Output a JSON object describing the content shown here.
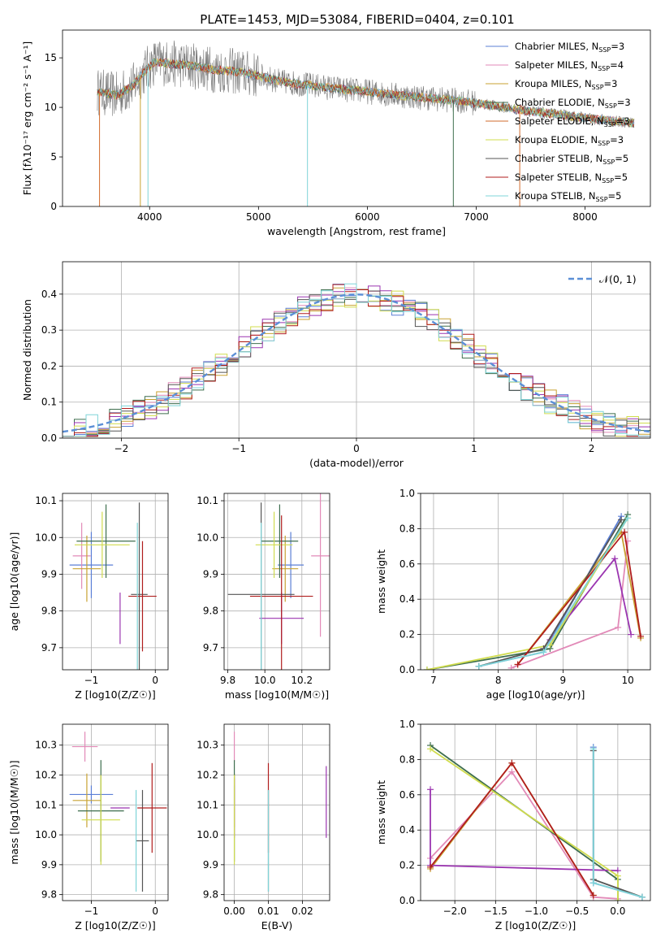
{
  "figure_title": "PLATE=1453, MJD=53084, FIBERID=0404, z=0.101",
  "series_colors": [
    "#5b7fd6",
    "#e28ab8",
    "#c8a232",
    "#3e6e4e",
    "#d26b2c",
    "#d0dc4e",
    "#555555",
    "#b01d1d",
    "#7fd4d8"
  ],
  "chart_data": [
    {
      "type": "line",
      "title": "PLATE=1453, MJD=53084, FIBERID=0404, z=0.101",
      "xlabel": "wavelength [Angstrom, rest frame]",
      "ylabel": "Flux [fλ10⁻¹⁷ erg cm⁻² s⁻¹ A⁻¹]",
      "xlim": [
        3200,
        8600
      ],
      "ylim": [
        0,
        17.8
      ],
      "xticks": [
        "4000",
        "5000",
        "6000",
        "7000",
        "8000"
      ],
      "xtick_values": [
        4000,
        5000,
        6000,
        7000,
        8000
      ],
      "yticks": [
        "0",
        "5",
        "10",
        "15"
      ],
      "ytick_values": [
        0,
        5,
        10,
        15
      ],
      "legend_position": "top-right",
      "grid": false,
      "legend": [
        {
          "name": "Chabrier MILES, N",
          "sub": "SSP",
          "tail": "=3"
        },
        {
          "name": "Salpeter MILES, N",
          "sub": "SSP",
          "tail": "=4"
        },
        {
          "name": "Kroupa MILES, N",
          "sub": "SSP",
          "tail": "=3"
        },
        {
          "name": "Chabrier ELODIE, N",
          "sub": "SSP",
          "tail": "=3"
        },
        {
          "name": "Salpeter ELODIE, N",
          "sub": "SSP",
          "tail": "=3"
        },
        {
          "name": "Kroupa ELODIE, N",
          "sub": "SSP",
          "tail": "=3"
        },
        {
          "name": "Chabrier STELIB, N",
          "sub": "SSP",
          "tail": "=5"
        },
        {
          "name": "Salpeter STELIB, N",
          "sub": "SSP",
          "tail": "=5"
        },
        {
          "name": "Kroupa STELIB, N",
          "sub": "SSP",
          "tail": "=5"
        }
      ],
      "spectrum_continuum": [
        [
          3520,
          11.6
        ],
        [
          3700,
          11.2
        ],
        [
          3850,
          12.2
        ],
        [
          3950,
          13.6
        ],
        [
          4050,
          14.6
        ],
        [
          4200,
          14.4
        ],
        [
          4400,
          14.2
        ],
        [
          4600,
          13.8
        ],
        [
          4800,
          13.6
        ],
        [
          5000,
          13.2
        ],
        [
          5200,
          12.6
        ],
        [
          5500,
          12.2
        ],
        [
          5800,
          11.8
        ],
        [
          6000,
          11.6
        ],
        [
          6300,
          11.2
        ],
        [
          6600,
          10.9
        ],
        [
          6900,
          10.6
        ],
        [
          7200,
          10.1
        ],
        [
          7500,
          9.6
        ],
        [
          7800,
          9.2
        ],
        [
          8100,
          8.8
        ],
        [
          8450,
          8.4
        ]
      ]
    },
    {
      "type": "histogram",
      "xlabel": "(data-model)/error",
      "ylabel": "Normed distribution",
      "xlim": [
        -2.5,
        2.5
      ],
      "ylim": [
        0,
        0.49
      ],
      "xticks": [
        "−2",
        "−1",
        "0",
        "1",
        "2"
      ],
      "xtick_values": [
        -2,
        -1,
        0,
        1,
        2
      ],
      "yticks": [
        "0.0",
        "0.1",
        "0.2",
        "0.3",
        "0.4"
      ],
      "ytick_values": [
        0,
        0.1,
        0.2,
        0.3,
        0.4
      ],
      "grid": true,
      "legend_position": "top-right",
      "reference_curve": {
        "name": "𝒩(0, 1)",
        "color": "#5b8fd6",
        "style": "dashed"
      },
      "bin_width": 0.1
    },
    {
      "type": "scatter",
      "xlabel": "Z [log10(Z/Z☉)]",
      "ylabel": "age  [log10(age/yr)]",
      "xlim": [
        -1.45,
        0.2
      ],
      "ylim": [
        9.64,
        10.12
      ],
      "xticks": [
        "−1",
        "0"
      ],
      "xtick_values": [
        -1,
        0
      ],
      "yticks": [
        "9.7",
        "9.8",
        "9.9",
        "10.0",
        "10.1"
      ],
      "ytick_values": [
        9.7,
        9.8,
        9.9,
        10.0,
        10.1
      ],
      "grid": true,
      "points": [
        {
          "x": -1.0,
          "y": 9.925,
          "xerr": 0.34,
          "yerr": 0.09,
          "c": 0
        },
        {
          "x": -1.15,
          "y": 9.95,
          "xerr": 0.14,
          "yerr": 0.09,
          "c": 1
        },
        {
          "x": -1.07,
          "y": 9.915,
          "xerr": 0.22,
          "yerr": 0.09,
          "c": 2
        },
        {
          "x": -0.77,
          "y": 9.99,
          "xerr": 0.46,
          "yerr": 0.1,
          "c": 3
        },
        {
          "x": -0.55,
          "y": 9.78,
          "xerr": 0.0,
          "yerr": 0.07,
          "c": 4
        },
        {
          "x": -0.83,
          "y": 9.98,
          "xerr": 0.43,
          "yerr": 0.09,
          "c": 5
        },
        {
          "x": -0.25,
          "y": 9.845,
          "xerr": 0.13,
          "yerr": 0.25,
          "c": 6
        },
        {
          "x": -0.2,
          "y": 9.84,
          "xerr": 0.22,
          "yerr": 0.15,
          "c": 7
        },
        {
          "x": -0.28,
          "y": 9.84,
          "xerr": 0.0,
          "yerr": 0.2,
          "c": 8
        }
      ]
    },
    {
      "type": "scatter",
      "xlabel": "mass [log10(M/M☉)]",
      "ylabel": "",
      "xlim": [
        9.78,
        10.35
      ],
      "ylim": [
        9.64,
        10.12
      ],
      "xticks": [
        "9.8",
        "10.0",
        "10.2"
      ],
      "xtick_values": [
        9.8,
        10.0,
        10.2
      ],
      "yticks": [
        "9.7",
        "9.8",
        "9.9",
        "10.0",
        "10.1"
      ],
      "ytick_values": [
        9.7,
        9.8,
        9.9,
        10.0,
        10.1
      ],
      "grid": true,
      "points": [
        {
          "x": 10.14,
          "y": 9.925,
          "xerr": 0.07,
          "yerr": 0.09,
          "c": 0
        },
        {
          "x": 10.3,
          "y": 9.95,
          "xerr": 0.05,
          "yerr": 0.22,
          "c": 1
        },
        {
          "x": 10.11,
          "y": 9.915,
          "xerr": 0.07,
          "yerr": 0.09,
          "c": 2
        },
        {
          "x": 10.08,
          "y": 9.99,
          "xerr": 0.1,
          "yerr": 0.1,
          "c": 3
        },
        {
          "x": 10.09,
          "y": 9.78,
          "xerr": 0.12,
          "yerr": 0.07,
          "c": 4
        },
        {
          "x": 10.05,
          "y": 9.98,
          "xerr": 0.1,
          "yerr": 0.09,
          "c": 5
        },
        {
          "x": 9.98,
          "y": 9.845,
          "xerr": 0.18,
          "yerr": 0.25,
          "c": 6
        },
        {
          "x": 10.09,
          "y": 9.84,
          "xerr": 0.17,
          "yerr": 0.22,
          "c": 7
        },
        {
          "x": 9.98,
          "y": 9.84,
          "xerr": 0.0,
          "yerr": 0.2,
          "c": 8
        }
      ]
    },
    {
      "type": "line",
      "xlabel": "age  [log10(age/yr)]",
      "ylabel": "mass weight",
      "xlim": [
        6.8,
        10.35
      ],
      "ylim": [
        0,
        1.0
      ],
      "xticks": [
        "7",
        "8",
        "9",
        "10"
      ],
      "xtick_values": [
        7,
        8,
        9,
        10
      ],
      "yticks": [
        "0.0",
        "0.2",
        "0.4",
        "0.6",
        "0.8",
        "1.0"
      ],
      "ytick_values": [
        0,
        0.2,
        0.4,
        0.6,
        0.8,
        1.0
      ],
      "grid": true,
      "series": [
        {
          "c": 0,
          "x": [
            7.7,
            8.7,
            9.9
          ],
          "y": [
            0.02,
            0.1,
            0.87
          ]
        },
        {
          "c": 1,
          "x": [
            8.2,
            9.85,
            10.0
          ],
          "y": [
            0.01,
            0.24,
            0.73
          ]
        },
        {
          "c": 2,
          "x": [
            8.3,
            9.9,
            10.2
          ],
          "y": [
            0.03,
            0.78,
            0.18
          ]
        },
        {
          "c": 3,
          "x": [
            6.9,
            8.8,
            10.0
          ],
          "y": [
            0.0,
            0.12,
            0.88
          ]
        },
        {
          "c": 4,
          "x": [
            8.8,
            9.8,
            10.05
          ],
          "y": [
            0.17,
            0.63,
            0.2
          ]
        },
        {
          "c": 5,
          "x": [
            6.9,
            8.8,
            10.0
          ],
          "y": [
            0.0,
            0.14,
            0.86
          ]
        },
        {
          "c": 6,
          "x": [
            7.7,
            8.7,
            9.9
          ],
          "y": [
            0.02,
            0.12,
            0.85
          ]
        },
        {
          "c": 7,
          "x": [
            8.3,
            9.95,
            10.2
          ],
          "y": [
            0.03,
            0.78,
            0.19
          ]
        },
        {
          "c": 8,
          "x": [
            7.7,
            8.7,
            10.0
          ],
          "y": [
            0.02,
            0.1,
            0.86
          ]
        }
      ]
    },
    {
      "type": "scatter",
      "xlabel": "Z [log10(Z/Z☉)]",
      "ylabel": "mass [log10(M/M☉)]",
      "xlim": [
        -1.45,
        0.2
      ],
      "ylim": [
        9.78,
        10.37
      ],
      "xticks": [
        "−1",
        "0"
      ],
      "xtick_values": [
        -1,
        0
      ],
      "yticks": [
        "9.8",
        "9.9",
        "10.0",
        "10.1",
        "10.2",
        "10.3"
      ],
      "ytick_values": [
        9.8,
        9.9,
        10.0,
        10.1,
        10.2,
        10.3
      ],
      "grid": true,
      "points": [
        {
          "x": -1.0,
          "y": 10.135,
          "xerr": 0.34,
          "yerr": 0.03,
          "c": 0
        },
        {
          "x": -1.1,
          "y": 10.295,
          "xerr": 0.2,
          "yerr": 0.05,
          "c": 1
        },
        {
          "x": -1.07,
          "y": 10.115,
          "xerr": 0.22,
          "yerr": 0.09,
          "c": 2
        },
        {
          "x": -0.85,
          "y": 10.08,
          "xerr": 0.36,
          "yerr": 0.17,
          "c": 3
        },
        {
          "x": -0.55,
          "y": 10.09,
          "xerr": 0.15,
          "yerr": 0.0,
          "c": 4
        },
        {
          "x": -0.85,
          "y": 10.05,
          "xerr": 0.3,
          "yerr": 0.15,
          "c": 5
        },
        {
          "x": -0.2,
          "y": 9.98,
          "xerr": 0.1,
          "yerr": 0.17,
          "c": 6
        },
        {
          "x": -0.05,
          "y": 10.09,
          "xerr": 0.23,
          "yerr": 0.15,
          "c": 7
        },
        {
          "x": -0.3,
          "y": 9.98,
          "xerr": 0.0,
          "yerr": 0.17,
          "c": 8
        }
      ]
    },
    {
      "type": "scatter",
      "xlabel": "E(B-V)",
      "ylabel": "",
      "xlim": [
        -0.003,
        0.028
      ],
      "ylim": [
        9.78,
        10.37
      ],
      "xticks": [
        "0.00",
        "0.01",
        "0.02"
      ],
      "xtick_values": [
        0,
        0.01,
        0.02
      ],
      "yticks": [
        "9.8",
        "9.9",
        "10.0",
        "10.1",
        "10.2",
        "10.3"
      ],
      "ytick_values": [
        9.8,
        9.9,
        10.0,
        10.1,
        10.2,
        10.3
      ],
      "grid": true,
      "points": [
        {
          "x": 0.0,
          "y": 10.135,
          "xerr": 0,
          "yerr": 0.03,
          "c": 0
        },
        {
          "x": 0.0,
          "y": 10.295,
          "xerr": 0,
          "yerr": 0.05,
          "c": 1
        },
        {
          "x": 0.0,
          "y": 10.115,
          "xerr": 0,
          "yerr": 0.09,
          "c": 2
        },
        {
          "x": 0.0,
          "y": 10.08,
          "xerr": 0,
          "yerr": 0.17,
          "c": 3
        },
        {
          "x": 0.0,
          "y": 10.09,
          "xerr": 0,
          "yerr": 0.1,
          "c": 4
        },
        {
          "x": 0.0,
          "y": 10.05,
          "xerr": 0,
          "yerr": 0.15,
          "c": 5
        },
        {
          "x": 0.01,
          "y": 9.98,
          "xerr": 0,
          "yerr": 0.17,
          "c": 6
        },
        {
          "x": 0.01,
          "y": 10.09,
          "xerr": 0,
          "yerr": 0.15,
          "c": 7
        },
        {
          "x": 0.027,
          "y": 10.11,
          "xerr": 0,
          "yerr": 0.12,
          "c": 4
        },
        {
          "x": 0.01,
          "y": 9.98,
          "xerr": 0,
          "yerr": 0.17,
          "c": 8
        }
      ]
    },
    {
      "type": "line",
      "xlabel": "Z [log10(Z/Z☉)]",
      "ylabel": "mass weight",
      "xlim": [
        -2.42,
        0.4
      ],
      "ylim": [
        0,
        1.0
      ],
      "xticks": [
        "−2.0",
        "−1.5",
        "−1.0",
        "−0.5",
        "0.0"
      ],
      "xtick_values": [
        -2,
        -1.5,
        -1,
        -0.5,
        0
      ],
      "yticks": [
        "0.0",
        "0.2",
        "0.4",
        "0.6",
        "0.8",
        "1.0"
      ],
      "ytick_values": [
        0,
        0.2,
        0.4,
        0.6,
        0.8,
        1.0
      ],
      "grid": true,
      "series": [
        {
          "c": 0,
          "x": [
            -0.3,
            -0.3,
            0.3
          ],
          "y": [
            0.87,
            0.1,
            0.02
          ]
        },
        {
          "c": 1,
          "x": [
            -2.3,
            -1.3,
            -0.3,
            0.0
          ],
          "y": [
            0.24,
            0.73,
            0.02,
            0.01
          ]
        },
        {
          "c": 2,
          "x": [
            -2.3,
            -1.3,
            -0.3
          ],
          "y": [
            0.18,
            0.78,
            0.03
          ]
        },
        {
          "c": 3,
          "x": [
            -2.3,
            0.0,
            0.0
          ],
          "y": [
            0.88,
            0.12,
            0.0
          ]
        },
        {
          "c": 4,
          "x": [
            -2.3,
            -2.3,
            0.0
          ],
          "y": [
            0.63,
            0.2,
            0.17
          ]
        },
        {
          "c": 5,
          "x": [
            -2.3,
            0.0,
            0.0
          ],
          "y": [
            0.86,
            0.14,
            0.0
          ]
        },
        {
          "c": 6,
          "x": [
            -0.3,
            -0.3,
            0.3
          ],
          "y": [
            0.85,
            0.12,
            0.02
          ]
        },
        {
          "c": 7,
          "x": [
            -2.3,
            -1.3,
            -0.3
          ],
          "y": [
            0.19,
            0.78,
            0.03
          ]
        },
        {
          "c": 8,
          "x": [
            -0.3,
            -0.3,
            0.3
          ],
          "y": [
            0.86,
            0.1,
            0.02
          ]
        }
      ]
    }
  ]
}
